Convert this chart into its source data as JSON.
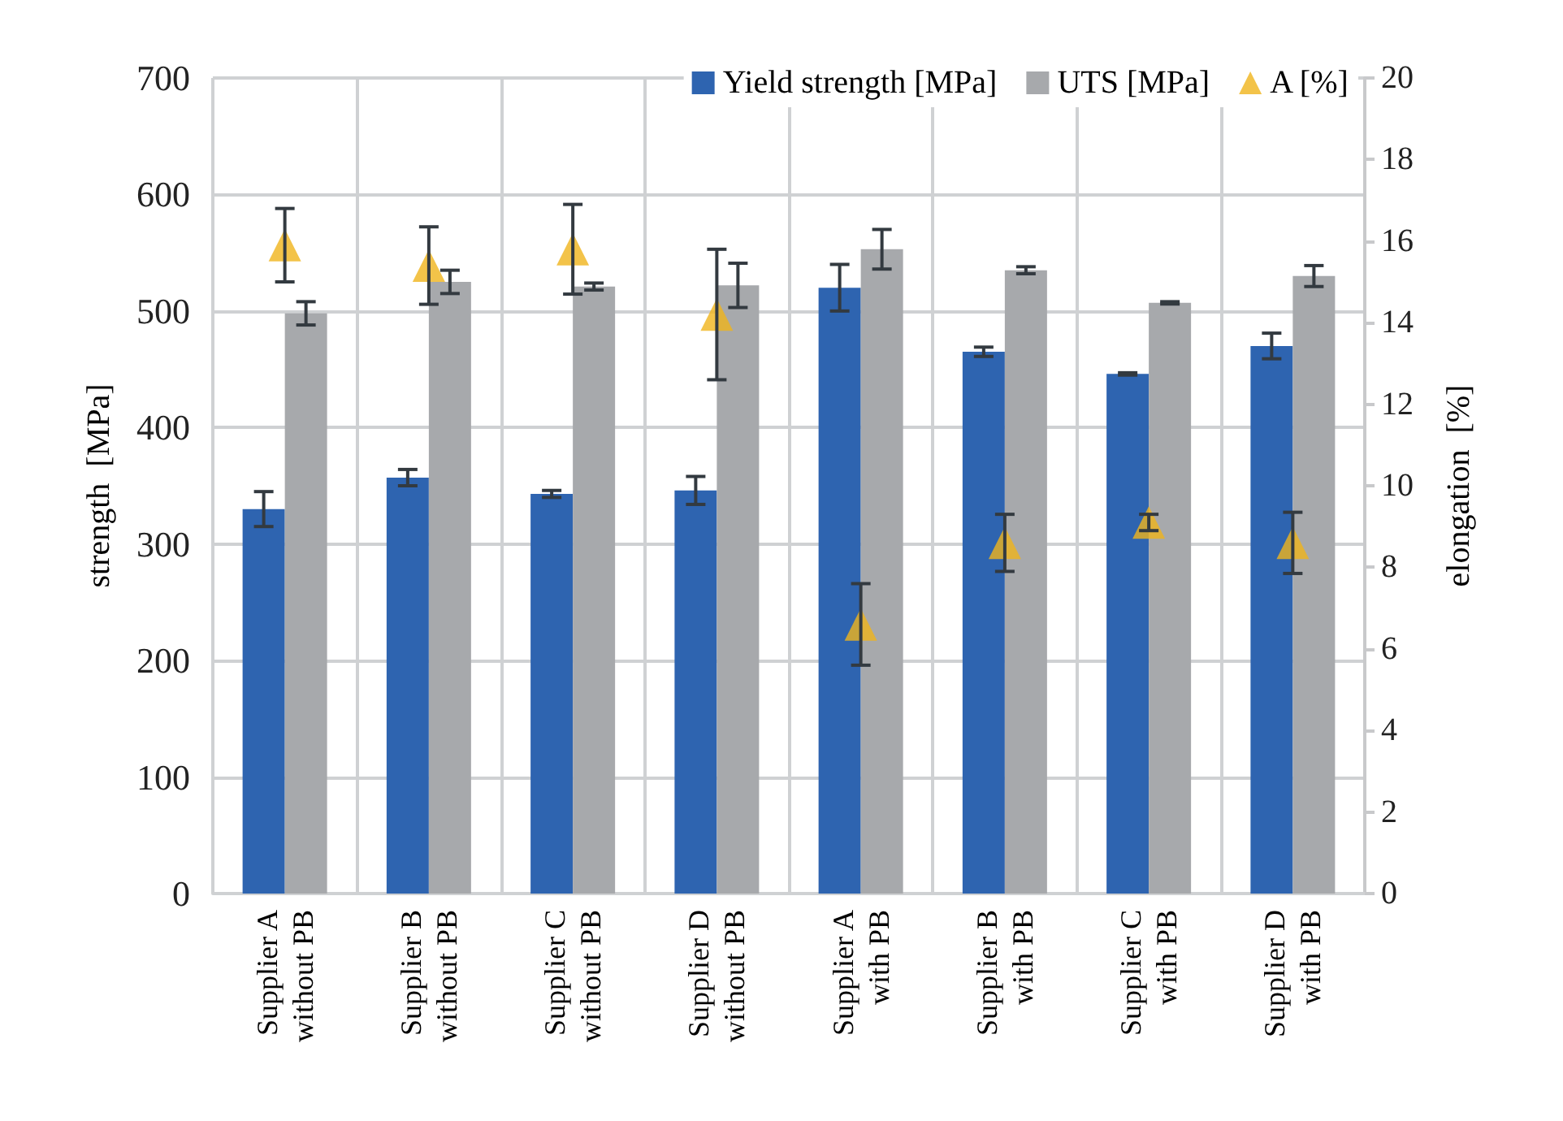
{
  "chart_data": {
    "type": "bar",
    "categories": [
      "Supplier A\nwithout PB",
      "Supplier B\nwithout PB",
      "Supplier C\nwithout PB",
      "Supplier D\nwithout PB",
      "Supplier A\nwith PB",
      "Supplier B\nwith PB",
      "Supplier C\nwith PB",
      "Supplier D\nwith PB"
    ],
    "series": [
      {
        "name": "Yield strength [MPa]",
        "color": "#2e64b0",
        "values": [
          330,
          357,
          343,
          346,
          520,
          465,
          446,
          470
        ],
        "errors": [
          15,
          7,
          3,
          12,
          20,
          4,
          1,
          11
        ]
      },
      {
        "name": "UTS [MPa]",
        "color": "#a7a9ac",
        "values": [
          498,
          525,
          521,
          522,
          553,
          535,
          507,
          530
        ],
        "errors": [
          10,
          10,
          3,
          19,
          17,
          3,
          1,
          9
        ]
      },
      {
        "name": "A [%]",
        "type": "scatter",
        "axis": "y2",
        "marker": "triangle",
        "color": "#f0b41c",
        "values": [
          15.9,
          15.4,
          15.8,
          14.2,
          6.6,
          8.6,
          9.1,
          8.6
        ],
        "errors": [
          0.9,
          0.95,
          1.1,
          1.6,
          1,
          0.7,
          0.2,
          0.75
        ]
      }
    ],
    "ylabel": "strength  [MPa]",
    "y2label": "elongation  [%]",
    "ylim": [
      0,
      700
    ],
    "yticks": [
      0,
      100,
      200,
      300,
      400,
      500,
      600,
      700
    ],
    "y2lim": [
      0,
      20
    ],
    "y2ticks": [
      0,
      2,
      4,
      6,
      8,
      10,
      12,
      14,
      16,
      18,
      20
    ],
    "grid": true,
    "legend": "top right"
  }
}
